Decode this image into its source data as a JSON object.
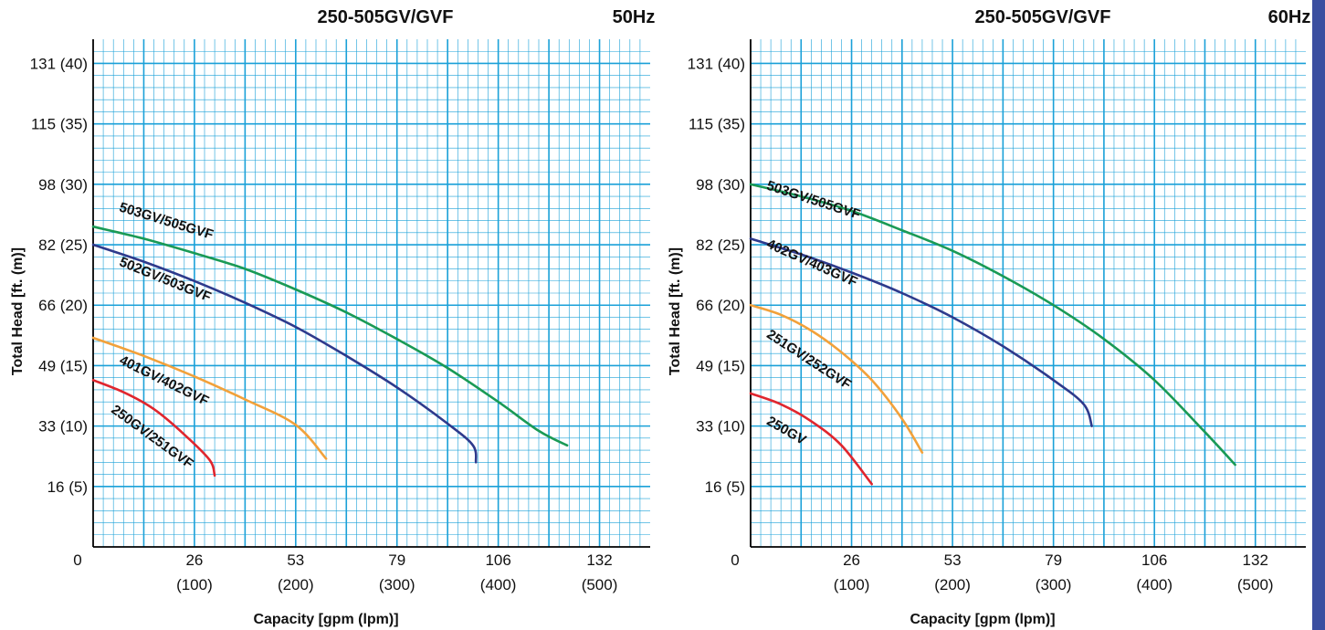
{
  "colors": {
    "grid": "#1aa0d8",
    "edge_bar": "#3b4fa0",
    "curve_green": "#1a9a55",
    "curve_navy": "#2e3a8c",
    "curve_orange": "#f2a13a",
    "curve_red": "#e0262e"
  },
  "chart_data": [
    {
      "type": "line",
      "title": "250-505GV/GVF",
      "subtitle": "50Hz",
      "xlabel": "Capacity [gpm (lpm)]",
      "ylabel": "Total Head [ft. (m)]",
      "xlim": [
        0,
        550
      ],
      "ylim": [
        0,
        42
      ],
      "grid": true,
      "legend": "inline labels",
      "x_ticks": [
        {
          "value": 0,
          "label": "0",
          "sub": ""
        },
        {
          "value": 100,
          "label": "26",
          "sub": "(100)"
        },
        {
          "value": 200,
          "label": "53",
          "sub": "(200)"
        },
        {
          "value": 300,
          "label": "79",
          "sub": "(300)"
        },
        {
          "value": 400,
          "label": "106",
          "sub": "(400)"
        },
        {
          "value": 500,
          "label": "132",
          "sub": "(500)"
        }
      ],
      "y_ticks": [
        {
          "value": 5,
          "label": "16 (5)"
        },
        {
          "value": 10,
          "label": "33 (10)"
        },
        {
          "value": 15,
          "label": "49 (15)"
        },
        {
          "value": 20,
          "label": "66 (20)"
        },
        {
          "value": 25,
          "label": "82 (25)"
        },
        {
          "value": 30,
          "label": "98 (30)"
        },
        {
          "value": 35,
          "label": "115 (35)"
        },
        {
          "value": 40,
          "label": "131 (40)"
        }
      ],
      "series": [
        {
          "name": "503GV/505GVF",
          "color": "#1a9a55",
          "points": [
            [
              0,
              26.5
            ],
            [
              50,
              25.5
            ],
            [
              100,
              24.3
            ],
            [
              150,
              23
            ],
            [
              200,
              21.3
            ],
            [
              250,
              19.4
            ],
            [
              300,
              17.2
            ],
            [
              350,
              14.8
            ],
            [
              400,
              12
            ],
            [
              440,
              9.6
            ],
            [
              468,
              8.4
            ]
          ],
          "label_at": [
            25,
            27.8
          ],
          "label_angle": 17
        },
        {
          "name": "502GV/503GVF",
          "color": "#2e3a8c",
          "points": [
            [
              0,
              25
            ],
            [
              50,
              23.6
            ],
            [
              100,
              22
            ],
            [
              150,
              20.2
            ],
            [
              200,
              18.2
            ],
            [
              250,
              15.8
            ],
            [
              300,
              13.2
            ],
            [
              350,
              10.2
            ],
            [
              375,
              8.4
            ],
            [
              378,
              7
            ]
          ],
          "label_at": [
            25,
            23.3
          ],
          "label_angle": 22
        },
        {
          "name": "401GV/402GVF",
          "color": "#f2a13a",
          "points": [
            [
              0,
              17.3
            ],
            [
              50,
              15.8
            ],
            [
              100,
              14.1
            ],
            [
              150,
              12.2
            ],
            [
              200,
              10.1
            ],
            [
              230,
              7.3
            ]
          ],
          "label_at": [
            25,
            15.2
          ],
          "label_angle": 26
        },
        {
          "name": "250GV/251GVF",
          "color": "#e0262e",
          "points": [
            [
              0,
              13.8
            ],
            [
              30,
              12.8
            ],
            [
              60,
              11.4
            ],
            [
              90,
              9.3
            ],
            [
              115,
              7.2
            ],
            [
              120,
              5.9
            ]
          ],
          "label_at": [
            17,
            11.2
          ],
          "label_angle": 36
        }
      ]
    },
    {
      "type": "line",
      "title": "250-505GV/GVF",
      "subtitle": "60Hz",
      "xlabel": "Capacity [gpm (lpm)]",
      "ylabel": "Total Head [ft. (m)]",
      "xlim": [
        0,
        550
      ],
      "ylim": [
        0,
        42
      ],
      "grid": true,
      "legend": "inline labels",
      "x_ticks": [
        {
          "value": 0,
          "label": "0",
          "sub": ""
        },
        {
          "value": 100,
          "label": "26",
          "sub": "(100)"
        },
        {
          "value": 200,
          "label": "53",
          "sub": "(200)"
        },
        {
          "value": 300,
          "label": "79",
          "sub": "(300)"
        },
        {
          "value": 400,
          "label": "106",
          "sub": "(400)"
        },
        {
          "value": 500,
          "label": "132",
          "sub": "(500)"
        }
      ],
      "y_ticks": [
        {
          "value": 5,
          "label": "16 (5)"
        },
        {
          "value": 10,
          "label": "33 (10)"
        },
        {
          "value": 15,
          "label": "49 (15)"
        },
        {
          "value": 20,
          "label": "66 (20)"
        },
        {
          "value": 25,
          "label": "82 (25)"
        },
        {
          "value": 30,
          "label": "98 (30)"
        },
        {
          "value": 35,
          "label": "115 (35)"
        },
        {
          "value": 40,
          "label": "131 (40)"
        }
      ],
      "series": [
        {
          "name": "503GV/505GVF",
          "color": "#1a9a55",
          "points": [
            [
              0,
              30
            ],
            [
              50,
              29
            ],
            [
              100,
              27.8
            ],
            [
              150,
              26.2
            ],
            [
              200,
              24.5
            ],
            [
              250,
              22.4
            ],
            [
              300,
              20
            ],
            [
              350,
              17.2
            ],
            [
              400,
              13.8
            ],
            [
              450,
              9.5
            ],
            [
              480,
              6.8
            ]
          ],
          "label_at": [
            15,
            29.6
          ],
          "label_angle": 18
        },
        {
          "name": "402GV/403GVF",
          "color": "#2e3a8c",
          "points": [
            [
              0,
              25.5
            ],
            [
              50,
              24.2
            ],
            [
              100,
              22.7
            ],
            [
              150,
              21
            ],
            [
              200,
              19
            ],
            [
              250,
              16.6
            ],
            [
              300,
              13.8
            ],
            [
              330,
              11.8
            ],
            [
              338,
              10
            ]
          ],
          "label_at": [
            15,
            24.8
          ],
          "label_angle": 24
        },
        {
          "name": "251GV/252GVF",
          "color": "#f2a13a",
          "points": [
            [
              0,
              20
            ],
            [
              30,
              19.2
            ],
            [
              60,
              17.9
            ],
            [
              90,
              16.1
            ],
            [
              120,
              13.8
            ],
            [
              150,
              10.6
            ],
            [
              170,
              7.8
            ]
          ],
          "label_at": [
            15,
            17.4
          ],
          "label_angle": 33
        },
        {
          "name": "250GV",
          "color": "#e0262e",
          "points": [
            [
              0,
              12.7
            ],
            [
              30,
              11.8
            ],
            [
              60,
              10.4
            ],
            [
              90,
              8.4
            ],
            [
              120,
              5.2
            ]
          ],
          "label_at": [
            15,
            10.2
          ],
          "label_angle": 30
        }
      ]
    }
  ]
}
